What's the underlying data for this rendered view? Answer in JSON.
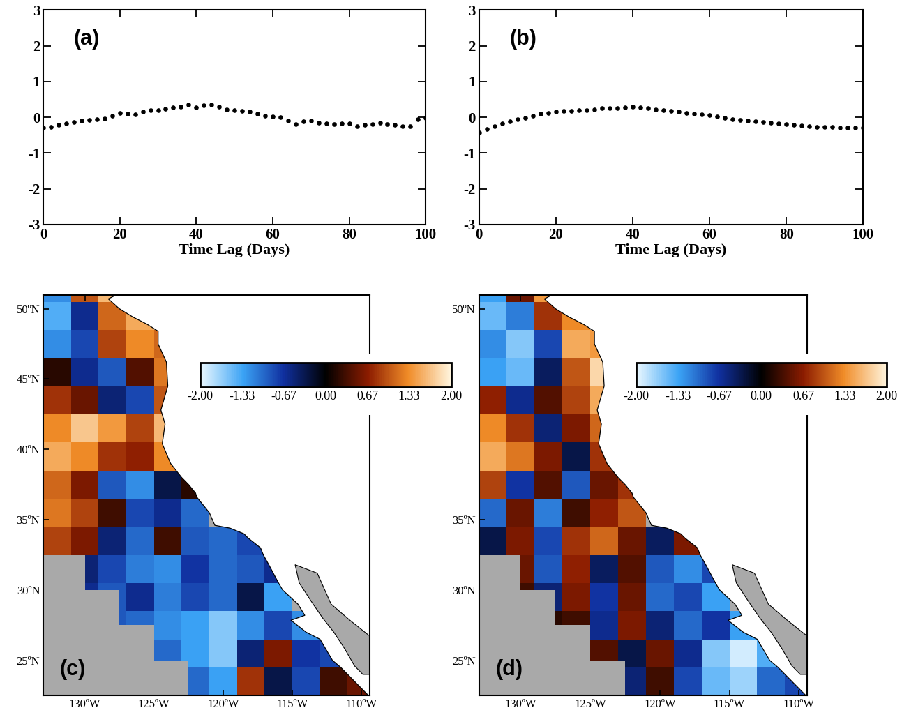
{
  "chart_data": [
    {
      "type": "scatter",
      "annotation": "(a)",
      "xlabel": "Time Lag (Days)",
      "color": "#000000",
      "marker": "o",
      "x": [
        0,
        2,
        4,
        6,
        8,
        10,
        12,
        14,
        16,
        18,
        20,
        22,
        24,
        26,
        28,
        30,
        32,
        34,
        36,
        38,
        40,
        42,
        44,
        46,
        48,
        50,
        52,
        54,
        56,
        58,
        60,
        62,
        64,
        66,
        68,
        70,
        72,
        74,
        76,
        78,
        80,
        82,
        84,
        86,
        88,
        90,
        92,
        94,
        96,
        98,
        100
      ],
      "values": [
        -0.3,
        -0.27,
        -0.22,
        -0.18,
        -0.14,
        -0.1,
        -0.08,
        -0.06,
        -0.03,
        0.05,
        0.12,
        0.1,
        0.08,
        0.15,
        0.2,
        0.2,
        0.24,
        0.27,
        0.3,
        0.35,
        0.28,
        0.33,
        0.35,
        0.3,
        0.22,
        0.2,
        0.18,
        0.15,
        0.1,
        0.05,
        0.03,
        0.0,
        -0.1,
        -0.2,
        -0.12,
        -0.1,
        -0.15,
        -0.18,
        -0.2,
        -0.18,
        -0.18,
        -0.25,
        -0.22,
        -0.2,
        -0.15,
        -0.2,
        -0.22,
        -0.25,
        -0.25,
        -0.05,
        -0.02
      ],
      "xlim": [
        0,
        100
      ],
      "ylim": [
        -3,
        3
      ],
      "xticks": [
        0,
        20,
        40,
        60,
        80,
        100
      ],
      "yticks": [
        -3,
        -2,
        -1,
        0,
        1,
        2,
        3
      ]
    },
    {
      "type": "scatter",
      "annotation": "(b)",
      "xlabel": "Time Lag (Days)",
      "color": "#000000",
      "marker": "o",
      "x": [
        0,
        2,
        4,
        6,
        8,
        10,
        12,
        14,
        16,
        18,
        20,
        22,
        24,
        26,
        28,
        30,
        32,
        34,
        36,
        38,
        40,
        42,
        44,
        46,
        48,
        50,
        52,
        54,
        56,
        58,
        60,
        62,
        64,
        66,
        68,
        70,
        72,
        74,
        76,
        78,
        80,
        82,
        84,
        86,
        88,
        90,
        92,
        94,
        96,
        98,
        100
      ],
      "values": [
        -0.42,
        -0.33,
        -0.25,
        -0.18,
        -0.12,
        -0.06,
        -0.02,
        0.05,
        0.1,
        0.12,
        0.15,
        0.17,
        0.18,
        0.2,
        0.2,
        0.22,
        0.25,
        0.26,
        0.26,
        0.27,
        0.3,
        0.27,
        0.25,
        0.22,
        0.2,
        0.18,
        0.15,
        0.12,
        0.1,
        0.08,
        0.06,
        0.03,
        -0.02,
        -0.05,
        -0.07,
        -0.1,
        -0.12,
        -0.13,
        -0.15,
        -0.18,
        -0.2,
        -0.22,
        -0.24,
        -0.25,
        -0.27,
        -0.28,
        -0.28,
        -0.29,
        -0.3,
        -0.3,
        -0.3
      ],
      "xlim": [
        0,
        100
      ],
      "ylim": [
        -3,
        3
      ],
      "xticks": [
        0,
        20,
        40,
        60,
        80,
        100
      ],
      "yticks": [
        -3,
        -2,
        -1,
        0,
        1,
        2,
        3
      ]
    },
    {
      "type": "heatmap",
      "annotation": "(c)",
      "lon_edges": [
        -133,
        -131,
        -129,
        -127,
        -125,
        -123,
        -121,
        -119,
        -117,
        -115,
        -113,
        -111,
        -109
      ],
      "lat_edges": [
        22.5,
        24.5,
        26.5,
        28.5,
        30.5,
        32.5,
        34.5,
        36.5,
        38.5,
        40.5,
        42.5,
        44.5,
        46.5,
        48.5,
        50.5,
        51
      ],
      "cells": [
        [
          null,
          null,
          null,
          null,
          null,
          -1.0,
          -1.3,
          0.8,
          -0.3,
          -0.8,
          0.3,
          0.5
        ],
        [
          null,
          null,
          null,
          null,
          -1.0,
          -1.3,
          -1.6,
          -0.5,
          0.6,
          -0.7,
          -0.8,
          null
        ],
        [
          null,
          null,
          -0.9,
          -1.0,
          -1.2,
          -1.3,
          -1.6,
          -1.2,
          -0.8,
          -1.2,
          null,
          null
        ],
        [
          null,
          -0.6,
          -0.9,
          -0.6,
          -1.1,
          -0.8,
          -1.0,
          -0.3,
          -1.3,
          null,
          null,
          null
        ],
        [
          null,
          -0.5,
          -0.8,
          -1.1,
          -1.2,
          -0.7,
          -1.0,
          -0.9,
          -0.6,
          null,
          null,
          null
        ],
        [
          0.9,
          0.6,
          -0.5,
          -1.0,
          0.3,
          -0.9,
          -1.0,
          -0.8,
          null,
          null,
          null,
          null
        ],
        [
          1.2,
          0.9,
          0.3,
          -0.8,
          -0.6,
          -1.0,
          null,
          null,
          null,
          null,
          null,
          null
        ],
        [
          1.1,
          0.6,
          -0.9,
          -1.2,
          -0.3,
          0.2,
          null,
          null,
          null,
          null,
          null,
          null
        ],
        [
          1.5,
          1.3,
          0.8,
          0.7,
          1.3,
          null,
          null,
          null,
          null,
          null,
          null,
          null
        ],
        [
          1.3,
          1.7,
          1.4,
          0.9,
          1.6,
          null,
          null,
          null,
          null,
          null,
          null,
          null
        ],
        [
          0.8,
          0.5,
          -0.5,
          -0.8,
          1.0,
          null,
          null,
          null,
          null,
          null,
          null,
          null
        ],
        [
          0.2,
          -0.6,
          -0.9,
          0.4,
          1.2,
          null,
          null,
          null,
          null,
          null,
          null,
          null
        ],
        [
          -1.2,
          -0.8,
          0.9,
          1.3,
          1.1,
          null,
          null,
          null,
          null,
          null,
          null,
          null
        ],
        [
          -1.4,
          -0.6,
          1.1,
          1.5,
          null,
          null,
          null,
          null,
          null,
          null,
          null,
          null
        ],
        [
          -1.2,
          1.0,
          1.6,
          null,
          null,
          null,
          null,
          null,
          null,
          null,
          null,
          null
        ]
      ],
      "xlim": [
        -133,
        -109.4
      ],
      "ylim": [
        22.5,
        51
      ],
      "xticks": [
        {
          "value": -130,
          "label": "130ºW"
        },
        {
          "value": -125,
          "label": "125ºW"
        },
        {
          "value": -120,
          "label": "120ºW"
        },
        {
          "value": -115,
          "label": "115ºW"
        },
        {
          "value": -110,
          "label": "110ºW"
        }
      ],
      "yticks": [
        {
          "value": 25,
          "label": "25ºN"
        },
        {
          "value": 30,
          "label": "30ºN"
        },
        {
          "value": 35,
          "label": "35ºN"
        },
        {
          "value": 40,
          "label": "40ºN"
        },
        {
          "value": 45,
          "label": "45ºN"
        },
        {
          "value": 50,
          "label": "50ºN"
        }
      ],
      "colorbar_range": [
        -2,
        2
      ],
      "colorbar_ticks": [
        {
          "value": -2,
          "label": "-2.00"
        },
        -1.33,
        -0.67,
        {
          "value": 0,
          "label": "0.00"
        },
        0.67,
        1.33,
        {
          "value": 2,
          "label": "2.00"
        }
      ]
    },
    {
      "type": "heatmap",
      "annotation": "(d)",
      "lon_edges": [
        -133,
        -131,
        -129,
        -127,
        -125,
        -123,
        -121,
        -119,
        -117,
        -115,
        -113,
        -111,
        -109
      ],
      "lat_edges": [
        22.5,
        24.5,
        26.5,
        28.5,
        30.5,
        32.5,
        34.5,
        36.5,
        38.5,
        40.5,
        42.5,
        44.5,
        46.5,
        48.5,
        50.5,
        51
      ],
      "cells": [
        [
          null,
          null,
          null,
          null,
          null,
          -0.5,
          0.3,
          -0.8,
          -1.5,
          -1.7,
          -1.0,
          -0.8
        ],
        [
          null,
          null,
          null,
          null,
          0.4,
          -0.3,
          0.5,
          -0.6,
          -1.6,
          -1.9,
          -1.4,
          null
        ],
        [
          null,
          null,
          0.2,
          0.3,
          -0.6,
          0.6,
          -0.5,
          -1.0,
          -0.7,
          -1.3,
          null,
          null
        ],
        [
          null,
          0.3,
          -0.5,
          0.6,
          -0.7,
          0.5,
          -1.0,
          -0.8,
          -1.3,
          null,
          null,
          null
        ],
        [
          null,
          0.5,
          -0.9,
          0.7,
          -0.4,
          0.4,
          -0.9,
          -1.2,
          -0.8,
          null,
          null,
          null
        ],
        [
          -0.3,
          0.6,
          -0.8,
          0.8,
          1.1,
          0.5,
          -0.4,
          0.6,
          null,
          null,
          null,
          null
        ],
        [
          -1.0,
          0.5,
          -1.1,
          0.3,
          0.7,
          1.0,
          null,
          null,
          null,
          null,
          null,
          null
        ],
        [
          0.9,
          -0.7,
          0.4,
          -0.9,
          0.5,
          0.8,
          null,
          null,
          null,
          null,
          null,
          null
        ],
        [
          1.5,
          1.2,
          0.6,
          -0.3,
          0.8,
          null,
          null,
          null,
          null,
          null,
          null,
          null
        ],
        [
          1.3,
          0.8,
          -0.5,
          0.6,
          1.1,
          null,
          null,
          null,
          null,
          null,
          null,
          null
        ],
        [
          0.7,
          -0.6,
          0.4,
          0.9,
          1.5,
          null,
          null,
          null,
          null,
          null,
          null,
          null
        ],
        [
          -1.3,
          -1.5,
          -0.4,
          1.0,
          1.8,
          null,
          null,
          null,
          null,
          null,
          null,
          null
        ],
        [
          -1.2,
          -1.6,
          -0.8,
          1.5,
          1.4,
          null,
          null,
          null,
          null,
          null,
          null,
          null
        ],
        [
          -1.5,
          -1.1,
          0.8,
          1.3,
          null,
          null,
          null,
          null,
          null,
          null,
          null,
          null
        ],
        [
          -1.3,
          0.5,
          1.4,
          null,
          null,
          null,
          null,
          null,
          null,
          null,
          null,
          null
        ]
      ],
      "xlim": [
        -133,
        -109.4
      ],
      "ylim": [
        22.5,
        51
      ],
      "xticks": [
        {
          "value": -130,
          "label": "130ºW"
        },
        {
          "value": -125,
          "label": "125ºW"
        },
        {
          "value": -120,
          "label": "120ºW"
        },
        {
          "value": -115,
          "label": "115ºW"
        },
        {
          "value": -110,
          "label": "110ºW"
        }
      ],
      "yticks": [
        {
          "value": 25,
          "label": "25ºN"
        },
        {
          "value": 30,
          "label": "30ºN"
        },
        {
          "value": 35,
          "label": "35ºN"
        },
        {
          "value": 50,
          "label": "50ºN"
        }
      ],
      "colorbar_range": [
        -2,
        2
      ],
      "colorbar_ticks": [
        {
          "value": -2,
          "label": "-2.00"
        },
        -1.33,
        -0.67,
        {
          "value": 0,
          "label": "0.00"
        },
        0.67,
        1.33,
        {
          "value": 2,
          "label": "2.00"
        }
      ]
    }
  ],
  "map_outline": {
    "coast": {
      "lon": [
        -127.7,
        -128.3,
        -127.5,
        -126.5,
        -125.5,
        -124.7,
        -124.7,
        -124.1,
        -124.0,
        -124.5,
        -124.2,
        -124.4,
        -123.8,
        -123.0,
        -122.5,
        -122.0,
        -121.9,
        -121.0,
        -120.6,
        -119.5,
        -118.5,
        -118.2,
        -117.3,
        -117.1,
        -116.7,
        -116.0,
        -115.7,
        -114.6,
        -114.1,
        -115.1,
        -114.0,
        -113.0,
        -112.1,
        -111.5,
        -110.5,
        -109.9,
        -109.5
      ],
      "lat": [
        51.0,
        50.7,
        50.0,
        49.4,
        48.9,
        48.4,
        47.5,
        46.2,
        44.5,
        42.8,
        41.8,
        40.4,
        39.0,
        38.0,
        37.5,
        36.9,
        36.6,
        35.5,
        34.6,
        34.4,
        34.0,
        33.7,
        33.0,
        32.5,
        31.8,
        30.5,
        30.0,
        29.0,
        28.2,
        27.85,
        27.0,
        26.5,
        25.0,
        24.5,
        23.5,
        22.9,
        22.5
      ]
    },
    "gulf": {
      "lon": [
        -114.8,
        -114.5,
        -113.5,
        -112.8,
        -112.0,
        -111.2,
        -110.5,
        -109.9,
        -108.0,
        -108.0,
        -109.5,
        -110.9,
        -112.2,
        -113.2,
        -114.8
      ],
      "lat": [
        31.8,
        30.5,
        29.0,
        28.0,
        27.0,
        25.8,
        24.6,
        24.0,
        24.0,
        26.0,
        26.8,
        27.9,
        29.0,
        31.2,
        31.8
      ]
    },
    "no_data": {
      "lon": [
        -133,
        -133,
        -130,
        -130,
        -127.5,
        -127.5,
        -125,
        -125,
        -122.5,
        -122.5
      ],
      "lat": [
        22.5,
        32.5,
        32.5,
        30,
        30,
        27.5,
        27.5,
        25,
        25,
        22.5
      ]
    }
  }
}
